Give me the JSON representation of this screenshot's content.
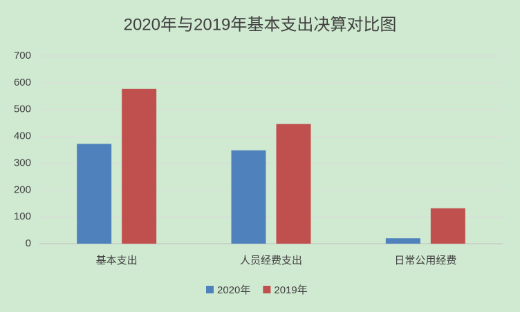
{
  "chart_data": {
    "type": "bar",
    "title": "2020年与2019年基本支出决算对比图",
    "categories": [
      "基本支出",
      "人员经费支出",
      "日常公用经费"
    ],
    "series": [
      {
        "name": "2020年",
        "color": "#4f81bd",
        "values": [
          372,
          348,
          20
        ]
      },
      {
        "name": "2019年",
        "color": "#c0504d",
        "values": [
          577,
          446,
          132
        ]
      }
    ],
    "ylim": [
      0,
      700
    ],
    "yticks": [
      0,
      100,
      200,
      300,
      400,
      500,
      600,
      700
    ],
    "grid": true,
    "legend": "bottom"
  }
}
